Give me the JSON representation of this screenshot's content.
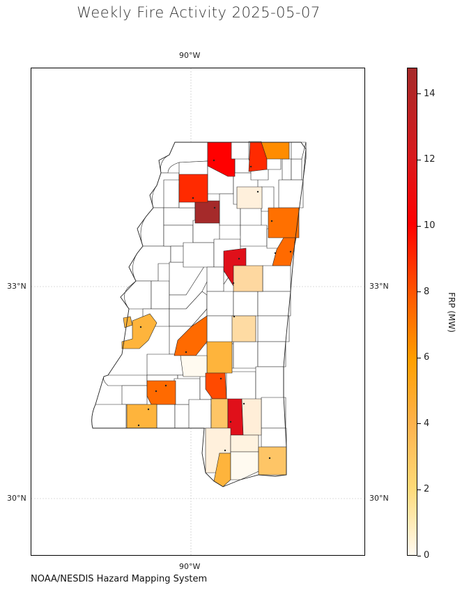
{
  "title": "Weekly Fire Activity 2025-05-07",
  "source": "NOAA/NESDIS Hazard Mapping System",
  "lon_labels": [
    "90°W",
    "90°W"
  ],
  "lat_labels": [
    {
      "left": "33°N",
      "right": "33°N"
    },
    {
      "left": "30°N",
      "right": "30°N"
    }
  ],
  "colorbar": {
    "title": "FRP (MW)",
    "range": [
      0,
      14.8
    ],
    "ticks": [
      "14",
      "12",
      "10",
      "8",
      "6",
      "4",
      "2",
      "0"
    ],
    "colors": [
      "#fffaf0",
      "#fed976",
      "#feb24c",
      "#ff9f00",
      "#ff5a00",
      "#ff0000",
      "#d7191c",
      "#a52a2a"
    ]
  },
  "chart_data": {
    "type": "choropleth",
    "region": "Mississippi counties",
    "value_label": "FRP (MW)",
    "fire_counties_frp": [
      14.5,
      11,
      10,
      9.5,
      9,
      8.5,
      8,
      7.2,
      7,
      6.5,
      6.2,
      6.8,
      5.2,
      4.2,
      3.5,
      3.5,
      3.3,
      2.5,
      2.2,
      2.0,
      1.5,
      1.2,
      0.8,
      0.7,
      0.6,
      0.6,
      0.4
    ]
  }
}
